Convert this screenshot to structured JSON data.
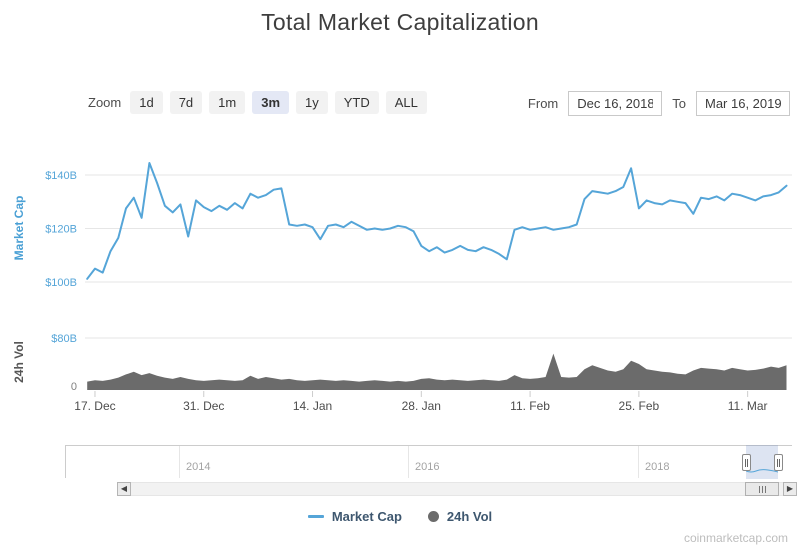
{
  "title": "Total Market Capitalization",
  "watermark": "coinmarketcap.com",
  "zoom_controls": {
    "label": "Zoom",
    "options": [
      "1d",
      "7d",
      "1m",
      "3m",
      "1y",
      "YTD",
      "ALL"
    ],
    "selected": "3m"
  },
  "date_range": {
    "from_label": "From",
    "from_value": "Dec 16, 2018",
    "to_label": "To",
    "to_value": "Mar 16, 2019"
  },
  "legend": [
    {
      "name": "Market Cap",
      "marker": "line",
      "color": "#55a5d8"
    },
    {
      "name": "24h Vol",
      "marker": "circle",
      "color": "#6b6b6b"
    }
  ],
  "navigator": {
    "year_labels": [
      "2014",
      "2016",
      "2018"
    ]
  },
  "chart_data": {
    "type": "line",
    "title": "Total Market Capitalization",
    "x_start": "2018-12-16",
    "x_end": "2019-03-16",
    "x_interval": "daily",
    "grid": true,
    "legend_position": "bottom",
    "x_ticks": [
      {
        "label": "17. Dec",
        "day": 1
      },
      {
        "label": "31. Dec",
        "day": 15
      },
      {
        "label": "14. Jan",
        "day": 29
      },
      {
        "label": "28. Jan",
        "day": 43
      },
      {
        "label": "11. Feb",
        "day": 57
      },
      {
        "label": "25. Feb",
        "day": 71
      },
      {
        "label": "11. Mar",
        "day": 85
      }
    ],
    "panes": [
      {
        "name": "Market Cap",
        "type": "line",
        "color": "#55a5d8",
        "axis_title": "Market Cap",
        "ylim": [
          98,
          148
        ],
        "yticks": [
          {
            "label": "$100B",
            "value": 100,
            "color": "#55a5d8"
          },
          {
            "label": "$120B",
            "value": 120,
            "color": "#55a5d8"
          },
          {
            "label": "$140B",
            "value": 140,
            "color": "#55a5d8"
          }
        ],
        "values_billions_usd": [
          101.2,
          105.0,
          103.5,
          111.5,
          116.5,
          127.5,
          131.5,
          124.0,
          144.5,
          137.0,
          128.5,
          126.0,
          129.0,
          117.0,
          130.5,
          128.0,
          126.5,
          128.5,
          127.0,
          129.5,
          127.5,
          133.0,
          131.5,
          132.5,
          134.5,
          135.0,
          121.5,
          121.0,
          121.5,
          120.5,
          116.0,
          121.0,
          121.5,
          120.5,
          122.5,
          121.0,
          119.5,
          120.0,
          119.5,
          120.0,
          121.0,
          120.5,
          119.0,
          113.5,
          111.5,
          113.0,
          111.0,
          112.0,
          113.5,
          112.0,
          111.5,
          113.0,
          112.0,
          110.5,
          108.5,
          119.5,
          120.5,
          119.5,
          120.0,
          120.5,
          119.5,
          120.0,
          120.5,
          121.5,
          131.0,
          134.0,
          133.5,
          133.0,
          134.0,
          135.5,
          142.5,
          127.5,
          130.5,
          129.5,
          129.0,
          130.5,
          130.0,
          129.5,
          125.5,
          131.5,
          131.0,
          132.0,
          130.5,
          133.0,
          132.5,
          131.5,
          130.5,
          132.0,
          132.5,
          133.5,
          136.0
        ]
      },
      {
        "name": "24h Vol",
        "type": "area",
        "color": "#6b6b6b",
        "axis_title": "24h Vol",
        "ylim": [
          0,
          88
        ],
        "yticks": [
          {
            "label": "0",
            "value": 0,
            "color": "#808080"
          },
          {
            "label": "$80B",
            "value": 80,
            "color": "#55a5d8"
          }
        ],
        "values_billions_usd": [
          13,
          15,
          14,
          16,
          19,
          24,
          28,
          23,
          26,
          22,
          19,
          17,
          20,
          17,
          15,
          14,
          15,
          16,
          15,
          14,
          15,
          22,
          17,
          20,
          18,
          16,
          17,
          15,
          14,
          15,
          16,
          15,
          14,
          15,
          14,
          13,
          14,
          15,
          14,
          13,
          14,
          13,
          14,
          17,
          18,
          16,
          15,
          16,
          15,
          14,
          15,
          16,
          15,
          14,
          16,
          23,
          18,
          17,
          18,
          20,
          56,
          20,
          19,
          20,
          32,
          38,
          34,
          30,
          28,
          32,
          45,
          40,
          32,
          30,
          28,
          27,
          25,
          24,
          30,
          34,
          33,
          32,
          30,
          34,
          32,
          30,
          31,
          33,
          36,
          34,
          38
        ]
      }
    ]
  }
}
